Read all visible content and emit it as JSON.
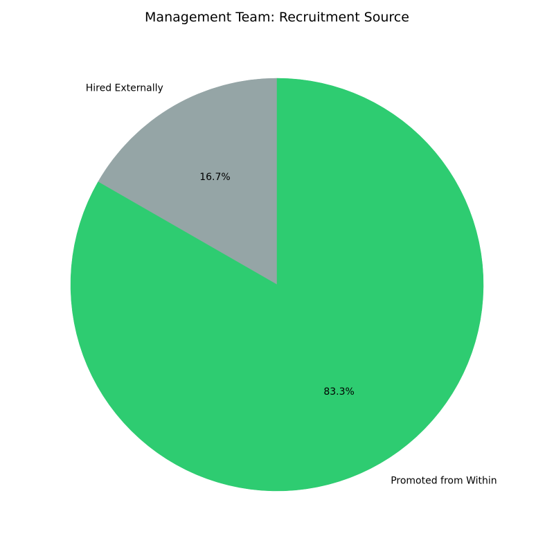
{
  "chart_data": {
    "type": "pie",
    "title": "Management Team: Recruitment Source",
    "start_angle_deg": 90,
    "direction": "counterclockwise",
    "slices": [
      {
        "label": "Hired Externally",
        "value": 16.7,
        "pct_label": "16.7%",
        "color": "#95a5a6"
      },
      {
        "label": "Promoted from Within",
        "value": 83.3,
        "pct_label": "83.3%",
        "color": "#2ecc71"
      }
    ]
  }
}
